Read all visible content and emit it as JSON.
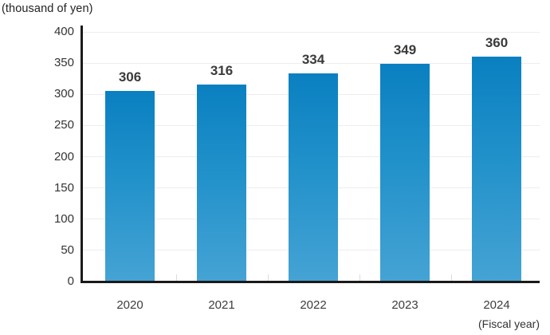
{
  "header": {
    "unit_label": "(thousand of yen)"
  },
  "footer": {
    "axis_note": "(Fiscal year)"
  },
  "chart_data": {
    "type": "bar",
    "title": "(thousand of yen)",
    "xlabel": "(Fiscal year)",
    "ylabel": "",
    "categories": [
      "2020",
      "2021",
      "2022",
      "2023",
      "2024"
    ],
    "values": [
      306,
      316,
      334,
      349,
      360
    ],
    "value_labels": [
      "306",
      "316",
      "334",
      "349",
      "360"
    ],
    "ylim": [
      0,
      400
    ],
    "yticks": [
      0,
      50,
      100,
      150,
      200,
      250,
      300,
      350,
      400
    ],
    "grid": true,
    "legend_position": "none"
  },
  "colors": {
    "bar_gradient_top": "#0a80c1",
    "bar_gradient_mid": "#2191ca",
    "bar_gradient_bottom": "#45a3d4",
    "axis_line": "#1a1a1a",
    "gridline": "#ededed",
    "boundary_tick": "#dcdcdc",
    "title_text": "#222222",
    "tick_text": "#333333",
    "category_text": "#3d3d3d",
    "value_text": "#3a3a3a"
  }
}
